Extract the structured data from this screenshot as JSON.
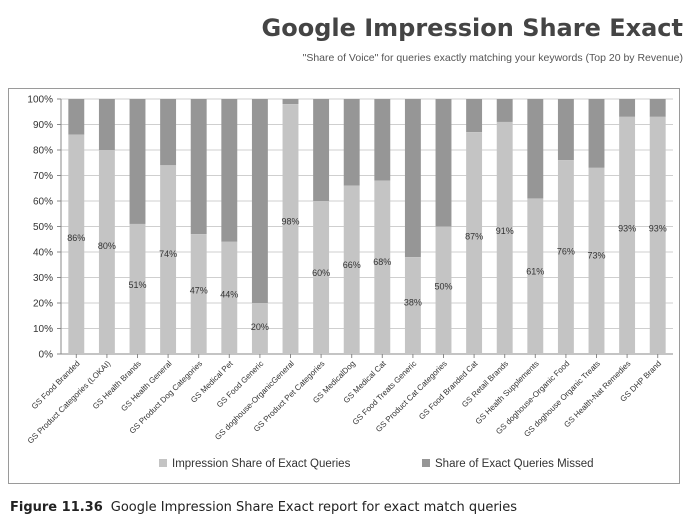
{
  "header": {
    "title": "Google Impression Share Exact",
    "subtitle": "\"Share of Voice\" for queries exactly matching your keywords (Top 20 by Revenue)"
  },
  "caption": {
    "figure": "Figure 11.36",
    "text": "Google Impression Share Exact report for exact match queries"
  },
  "colors": {
    "impression": "#c4c4c4",
    "missed": "#969696",
    "grid": "#cfcfcf",
    "axis": "#888888",
    "text": "#333333"
  },
  "chart_data": {
    "type": "bar",
    "stacked": true,
    "percent": true,
    "categories": [
      "GS Food Branded",
      "GS Product Categories (LOKAI)",
      "GS Health Brands",
      "GS Health General",
      "GS Product Dog Categories",
      "GS Medical Pet",
      "GS Food Generic",
      "GS doghouse-OrganicGeneral",
      "GS Product Pet Categories",
      "GS MedicalDog",
      "GS Medical Cat",
      "GS Food Treats Generic",
      "GS Product Cat Categories",
      "GS Food Branded Cat",
      "GS Retail Brands",
      "GS Health Supplements",
      "GS doghouse-Organic Food",
      "GS doghouse Organic Treats",
      "GS Health-Nat Remedies",
      "GS DHP Brand"
    ],
    "series": [
      {
        "name": "Impression Share of Exact Queries",
        "values": [
          86,
          80,
          51,
          74,
          47,
          44,
          20,
          98,
          60,
          66,
          68,
          38,
          50,
          87,
          91,
          61,
          76,
          73,
          93,
          93
        ]
      },
      {
        "name": "Share of Exact Queries Missed",
        "values": [
          14,
          20,
          49,
          26,
          53,
          56,
          80,
          2,
          40,
          34,
          32,
          62,
          50,
          13,
          9,
          39,
          24,
          27,
          7,
          7
        ]
      }
    ],
    "data_labels": [
      "86%",
      "80%",
      "51%",
      "74%",
      "47%",
      "44%",
      "20%",
      "98%",
      "60%",
      "66%",
      "68%",
      "38%",
      "50%",
      "87%",
      "91%",
      "61%",
      "76%",
      "73%",
      "93%",
      "93%"
    ],
    "yticks": [
      "0%",
      "10%",
      "20%",
      "30%",
      "40%",
      "50%",
      "60%",
      "70%",
      "80%",
      "90%",
      "100%"
    ],
    "ylim": [
      0,
      100
    ],
    "grid": true,
    "legend_position": "bottom"
  }
}
